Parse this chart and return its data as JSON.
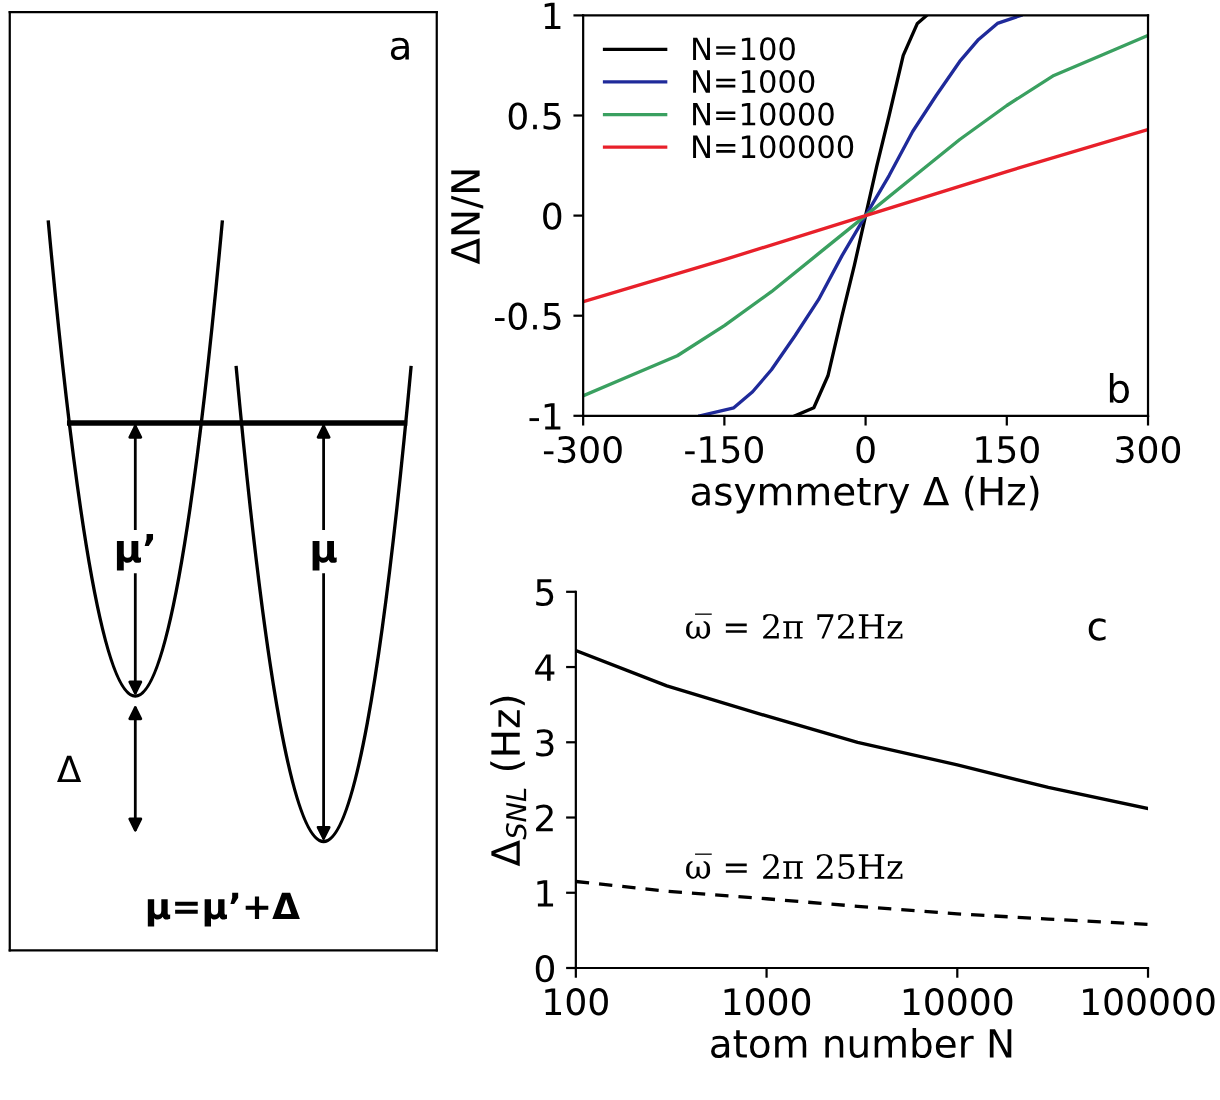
{
  "chart_data": [
    {
      "type": "other",
      "annotations": [
        "a",
        "μ’",
        "μ",
        "Δ",
        "μ=μ’+Δ"
      ]
    },
    {
      "type": "line",
      "xlabel": "asymmetry Δ (Hz)",
      "ylabel": "ΔN/N",
      "xlim": [
        -300,
        300
      ],
      "ylim": [
        -1,
        1
      ],
      "xticks": [
        -300,
        -150,
        0,
        150,
        300
      ],
      "yticks": [
        -1,
        -0.5,
        0,
        0.5,
        1
      ],
      "legend": "top left",
      "grid": false,
      "annotations": [
        "b"
      ],
      "series": [
        {
          "name": "N=100",
          "color": "#000000",
          "x": [
            -75,
            -55,
            -40,
            -25,
            -12,
            0,
            12,
            25,
            40,
            55,
            65
          ],
          "values": [
            -1,
            -0.96,
            -0.8,
            -0.5,
            -0.25,
            0,
            0.25,
            0.5,
            0.8,
            0.96,
            1
          ]
        },
        {
          "name": "N=1000",
          "color": "#1f2a9a",
          "x": [
            -176,
            -140,
            -120,
            -100,
            -75,
            -50,
            -25,
            0,
            25,
            50,
            75,
            100,
            120,
            140,
            165
          ],
          "values": [
            -1,
            -0.96,
            -0.88,
            -0.77,
            -0.6,
            -0.42,
            -0.2,
            0,
            0.2,
            0.42,
            0.6,
            0.77,
            0.88,
            0.96,
            1
          ]
        },
        {
          "name": "N=10000",
          "color": "#3aa060",
          "x": [
            -300,
            -250,
            -200,
            -150,
            -100,
            -50,
            0,
            50,
            100,
            150,
            200,
            250,
            300
          ],
          "values": [
            -0.9,
            -0.8,
            -0.7,
            -0.55,
            -0.38,
            -0.19,
            0,
            0.19,
            0.38,
            0.55,
            0.7,
            0.8,
            0.9
          ]
        },
        {
          "name": "N=100000",
          "color": "#e8202a",
          "x": [
            -300,
            -150,
            0,
            150,
            300
          ],
          "values": [
            -0.43,
            -0.22,
            0,
            0.22,
            0.43
          ]
        }
      ]
    },
    {
      "type": "line",
      "xlabel": "atom number N",
      "ylabel": "Δ$_{SNL}$ (Hz)",
      "log": "x",
      "xlim": [
        100,
        100000
      ],
      "ylim": [
        0,
        5
      ],
      "xticks": [
        100,
        1000,
        10000,
        100000
      ],
      "yticks": [
        0,
        1,
        2,
        3,
        4,
        5
      ],
      "grid": false,
      "annotations": [
        "ω̅ = 2π 72Hz",
        "ω̅ = 2π 25Hz",
        "c"
      ],
      "series": [
        {
          "color": "#000000",
          "line_style": "solid",
          "x": [
            100,
            300,
            1000,
            3000,
            10000,
            30000,
            100000
          ],
          "values": [
            4.22,
            3.75,
            3.35,
            3.0,
            2.7,
            2.4,
            2.12
          ]
        },
        {
          "color": "#000000",
          "line_style": "dashed",
          "x": [
            100,
            300,
            1000,
            3000,
            10000,
            30000,
            100000
          ],
          "values": [
            1.15,
            1.02,
            0.92,
            0.82,
            0.72,
            0.65,
            0.58
          ]
        }
      ]
    }
  ]
}
